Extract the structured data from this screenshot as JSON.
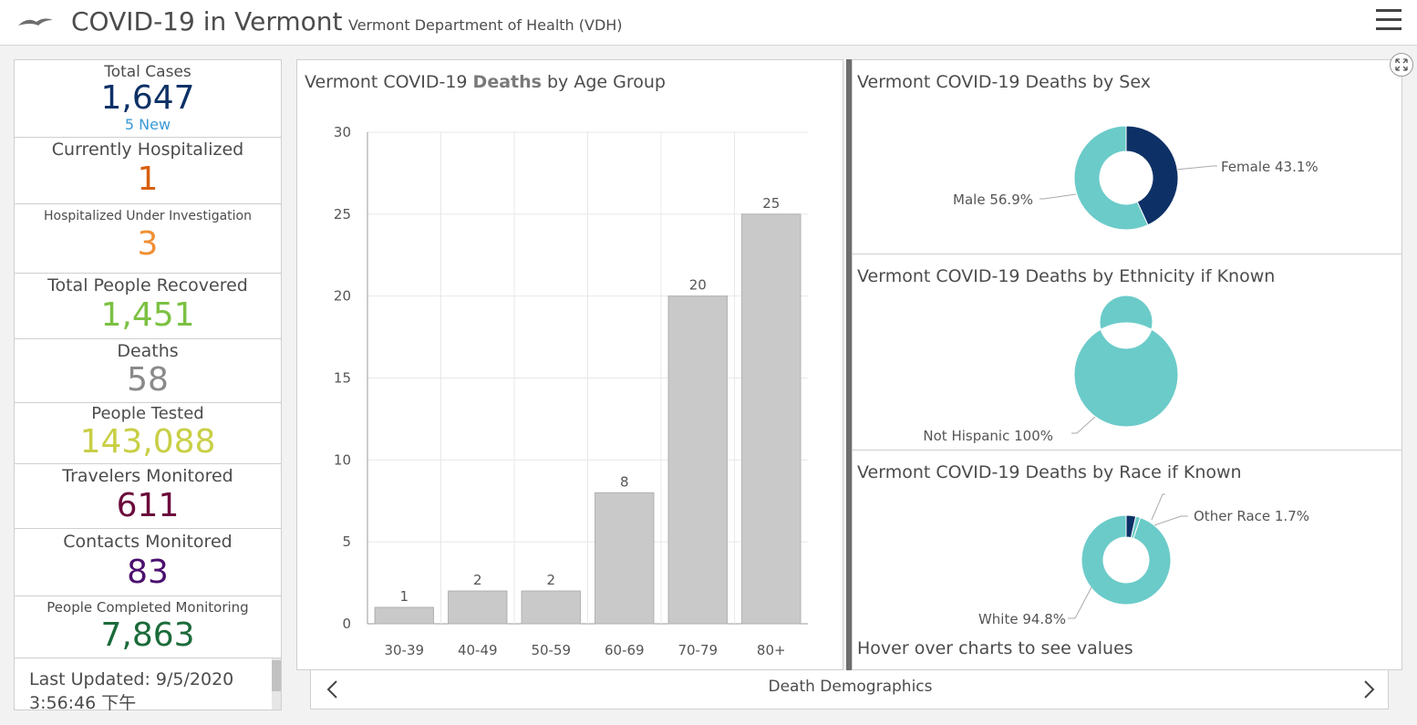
{
  "header": {
    "title": "COVID-19 in Vermont",
    "subtitle": "Vermont Department of Health (VDH)",
    "logo_icon": "bird-logo-icon",
    "menu_icon": "hamburger-menu-icon"
  },
  "stats": [
    {
      "label": "Total Cases",
      "value": "1,647",
      "sub": "5 New",
      "color": "#0d3166"
    },
    {
      "label": "Currently Hospitalized",
      "value": "1",
      "color": "#d95f0e"
    },
    {
      "label": "Hospitalized Under Investigation",
      "value": "3",
      "color": "#f08f33"
    },
    {
      "label": "Total People Recovered",
      "value": "1,451",
      "color": "#7bc142"
    },
    {
      "label": "Deaths",
      "value": "58",
      "color": "#8a8a8a"
    },
    {
      "label": "People Tested",
      "value": "143,088",
      "color": "#c8cf45"
    },
    {
      "label": "Travelers Monitored",
      "value": "611",
      "color": "#6b0a3b"
    },
    {
      "label": "Contacts Monitored",
      "value": "83",
      "color": "#4b0f6e"
    },
    {
      "label": "People Completed Monitoring",
      "value": "7,863",
      "color": "#1b6b3a"
    }
  ],
  "last_updated": {
    "line1": "Last Updated: 9/5/2020",
    "line2": "3:56:46 下午"
  },
  "age_chart": {
    "title_prefix": "Vermont COVID-19 ",
    "title_bold": "Deaths",
    "title_suffix": " by Age Group"
  },
  "sex_chart": {
    "title": "Vermont COVID-19 Deaths by Sex"
  },
  "ethnicity_chart": {
    "title": "Vermont COVID-19 Deaths by Ethnicity if Known"
  },
  "race_chart": {
    "title": "Vermont COVID-19 Deaths by Race if Known"
  },
  "hint": "Hover over charts to see values",
  "footer": {
    "label": "Death Demographics",
    "prev_icon": "chevron-left-icon",
    "next_icon": "chevron-right-icon"
  },
  "chart_data": [
    {
      "type": "bar",
      "title": "Vermont COVID-19 Deaths by Age Group",
      "categories": [
        "30-39",
        "40-49",
        "50-59",
        "60-69",
        "70-79",
        "80+"
      ],
      "values": [
        1,
        2,
        2,
        8,
        20,
        25
      ],
      "ylim": [
        0,
        30
      ],
      "yticks": [
        0,
        5,
        10,
        15,
        20,
        25,
        30
      ],
      "xlabel": "",
      "ylabel": "",
      "grid": true,
      "bar_color": "#c9c9c9"
    },
    {
      "type": "pie",
      "donut": true,
      "title": "Vermont COVID-19 Deaths by Sex",
      "slices": [
        {
          "label": "Female 43.1%",
          "value": 43.1,
          "color": "#0d3166"
        },
        {
          "label": "Male 56.9%",
          "value": 56.9,
          "color": "#6bcbc9"
        }
      ]
    },
    {
      "type": "pie",
      "donut": true,
      "title": "Vermont COVID-19 Deaths by Ethnicity if Known",
      "slices": [
        {
          "label": "Not Hispanic 100%",
          "value": 100,
          "color": "#6bcbc9"
        }
      ]
    },
    {
      "type": "pie",
      "donut": true,
      "title": "Vermont COVID-19 Deaths by Race if Known",
      "slices": [
        {
          "label": "",
          "value": 3.5,
          "color": "#0d3166"
        },
        {
          "label": "Other Race 1.7%",
          "value": 1.7,
          "color": "#6bcbc9"
        },
        {
          "label": "White 94.8%",
          "value": 94.8,
          "color": "#6bcbc9"
        }
      ]
    }
  ]
}
